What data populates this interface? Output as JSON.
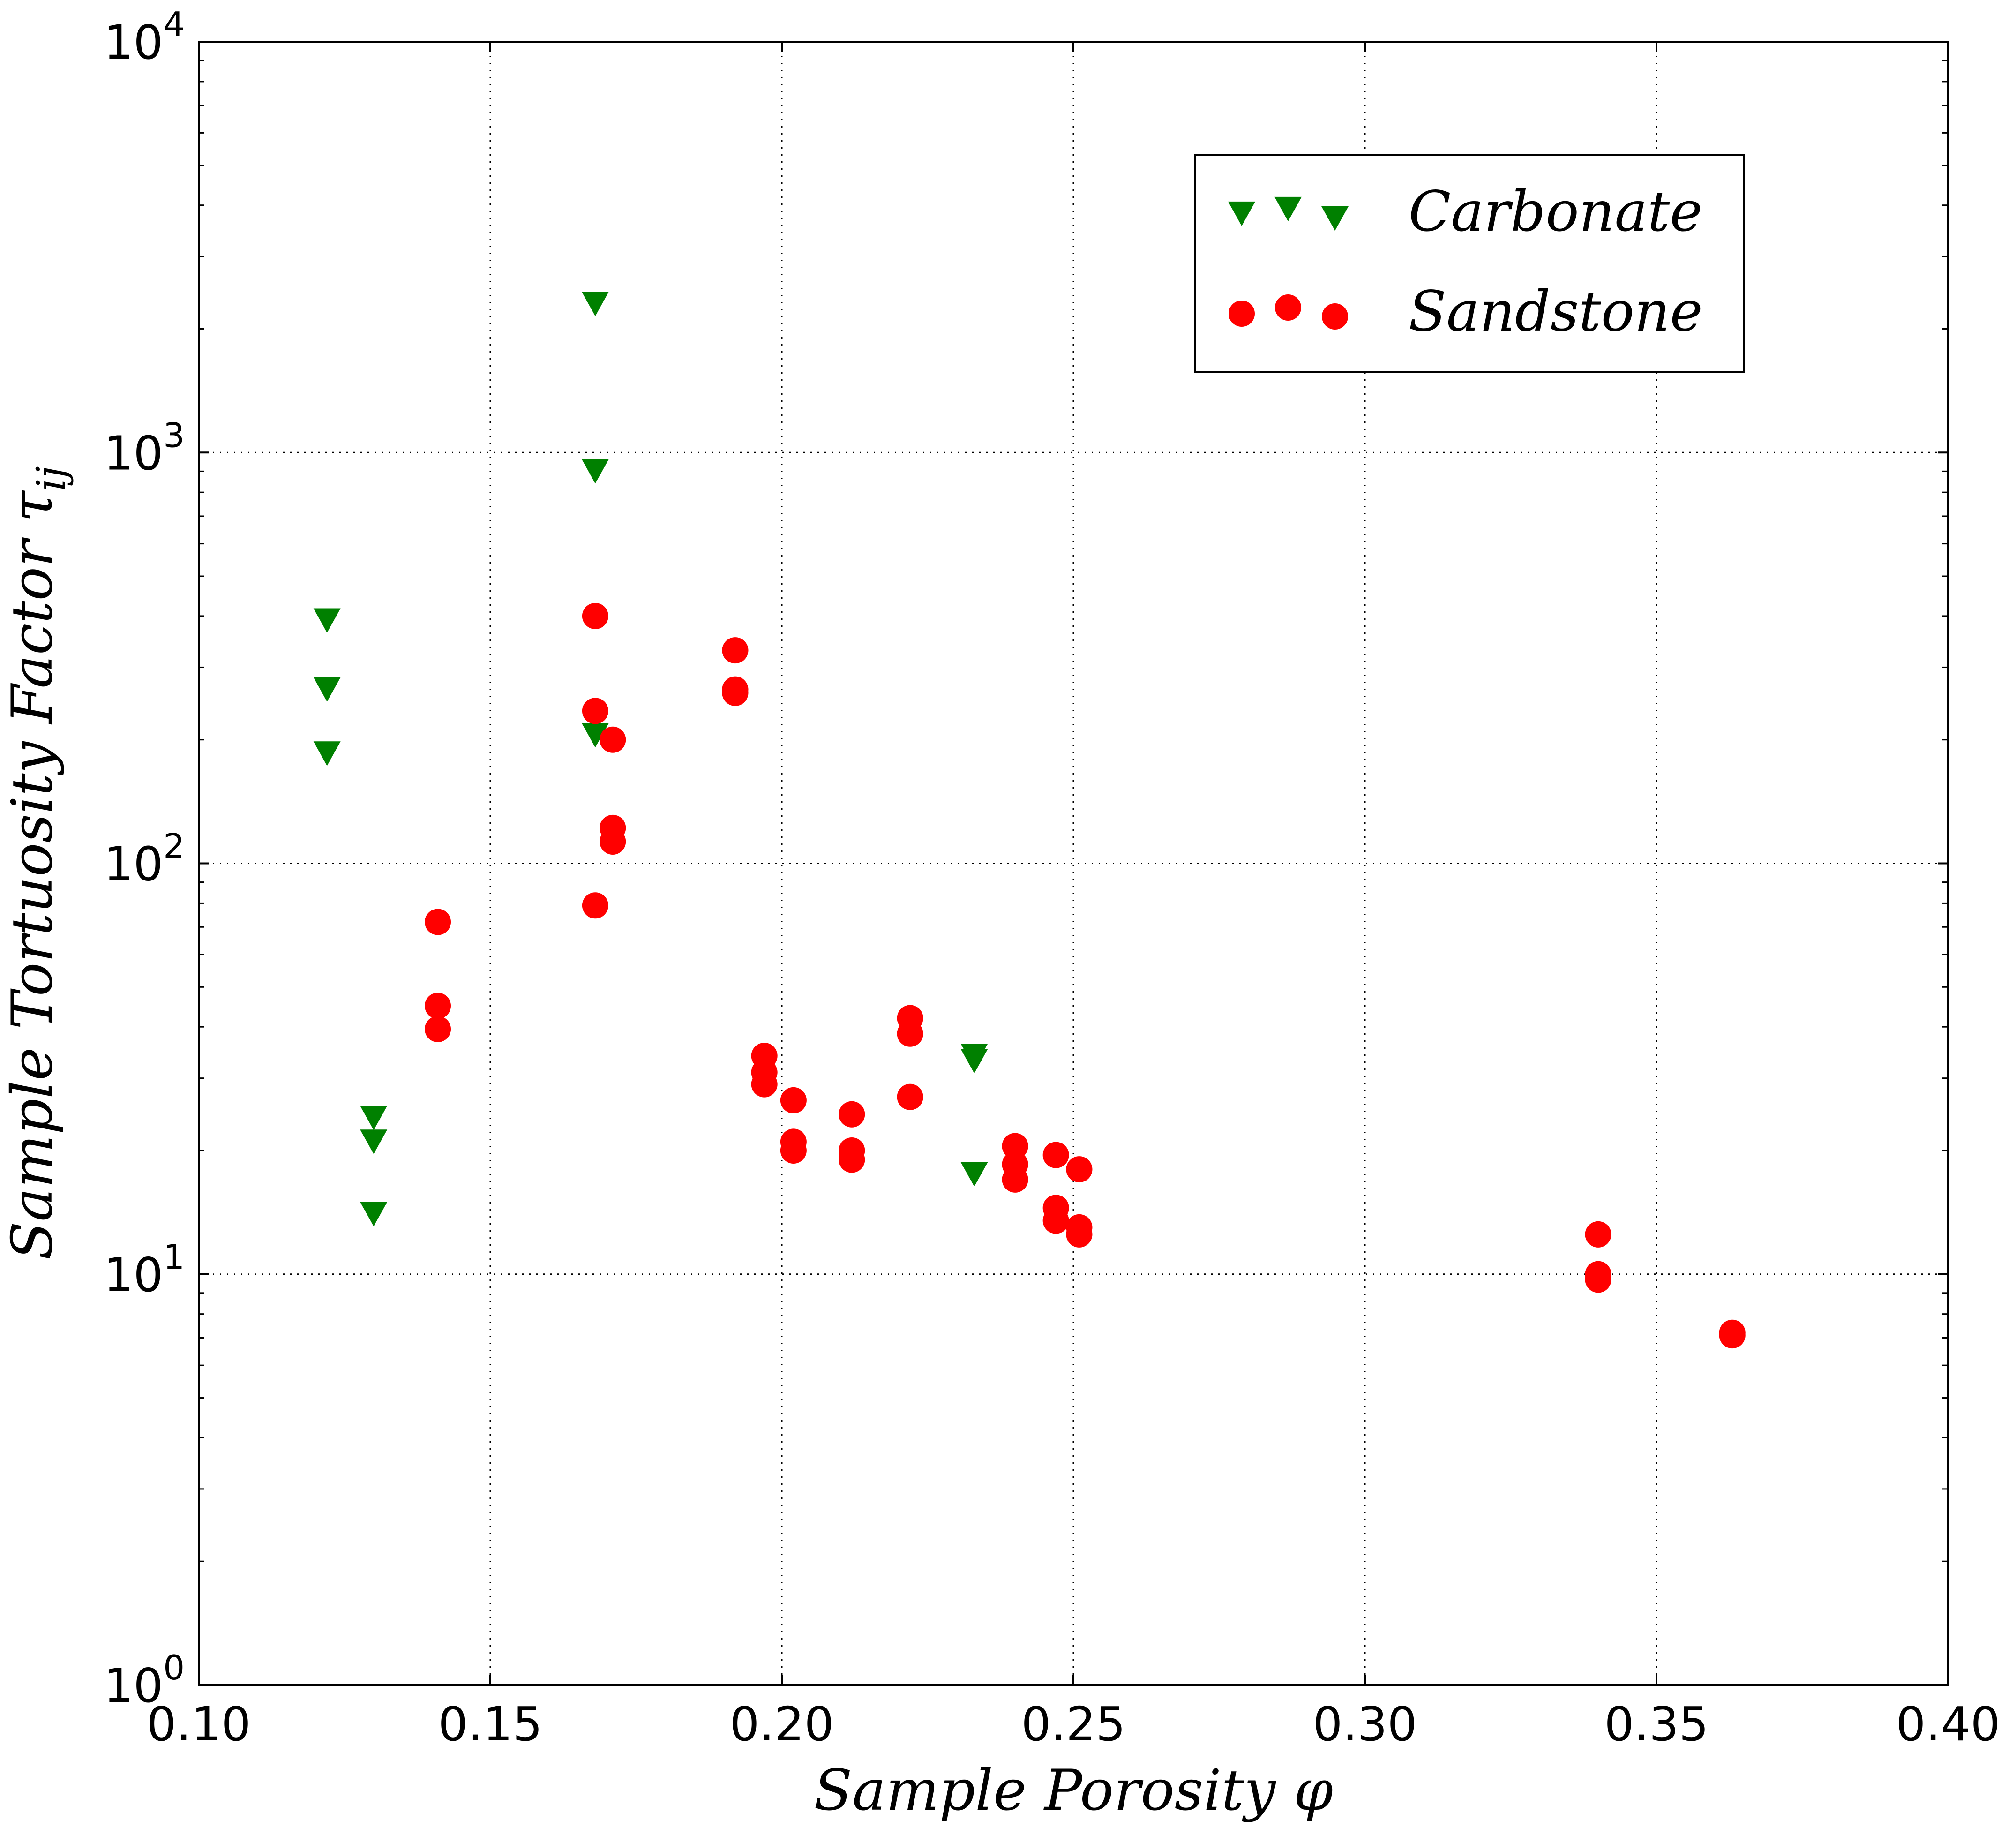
{
  "chart_data": {
    "type": "scatter",
    "xlabel": "Sample Porosity φ",
    "ylabel": "Sample Tortuosity Factor τ",
    "ylabel_subscript": "ij",
    "xlim": [
      0.1,
      0.4
    ],
    "ylim": [
      1,
      10000
    ],
    "yscale": "log",
    "grid": true,
    "legend_position": "top-right",
    "x_ticks": [
      "0.10",
      "0.15",
      "0.20",
      "0.25",
      "0.30",
      "0.35",
      "0.40"
    ],
    "y_ticks": [
      {
        "base": "10",
        "exp": "0",
        "value": 1
      },
      {
        "base": "10",
        "exp": "1",
        "value": 10
      },
      {
        "base": "10",
        "exp": "2",
        "value": 100
      },
      {
        "base": "10",
        "exp": "3",
        "value": 1000
      },
      {
        "base": "10",
        "exp": "4",
        "value": 10000
      }
    ],
    "series": [
      {
        "name": "Carbonate",
        "marker": "triangle-down",
        "color": "#008000",
        "points": [
          [
            0.122,
            390
          ],
          [
            0.122,
            265
          ],
          [
            0.122,
            185
          ],
          [
            0.13,
            24
          ],
          [
            0.13,
            21
          ],
          [
            0.13,
            14
          ],
          [
            0.168,
            2300
          ],
          [
            0.168,
            900
          ],
          [
            0.168,
            205
          ],
          [
            0.233,
            34
          ],
          [
            0.233,
            33
          ],
          [
            0.233,
            17.5
          ]
        ]
      },
      {
        "name": "Sandstone",
        "marker": "circle",
        "color": "#ff0000",
        "points": [
          [
            0.141,
            72
          ],
          [
            0.141,
            45
          ],
          [
            0.141,
            39.5
          ],
          [
            0.168,
            400
          ],
          [
            0.168,
            235
          ],
          [
            0.168,
            79
          ],
          [
            0.171,
            200
          ],
          [
            0.171,
            122
          ],
          [
            0.171,
            113
          ],
          [
            0.192,
            330
          ],
          [
            0.192,
            265
          ],
          [
            0.192,
            260
          ],
          [
            0.197,
            34
          ],
          [
            0.197,
            31
          ],
          [
            0.197,
            29
          ],
          [
            0.202,
            26.5
          ],
          [
            0.202,
            21
          ],
          [
            0.202,
            20
          ],
          [
            0.212,
            24.5
          ],
          [
            0.212,
            20
          ],
          [
            0.212,
            19
          ],
          [
            0.222,
            42
          ],
          [
            0.222,
            38.5
          ],
          [
            0.222,
            27
          ],
          [
            0.24,
            20.5
          ],
          [
            0.24,
            18.5
          ],
          [
            0.24,
            17
          ],
          [
            0.247,
            19.5
          ],
          [
            0.247,
            14.5
          ],
          [
            0.247,
            13.5
          ],
          [
            0.251,
            18
          ],
          [
            0.251,
            13
          ],
          [
            0.251,
            12.5
          ],
          [
            0.34,
            12.5
          ],
          [
            0.34,
            10
          ],
          [
            0.34,
            9.7
          ],
          [
            0.363,
            7.2
          ],
          [
            0.363,
            7.1
          ]
        ]
      }
    ]
  }
}
